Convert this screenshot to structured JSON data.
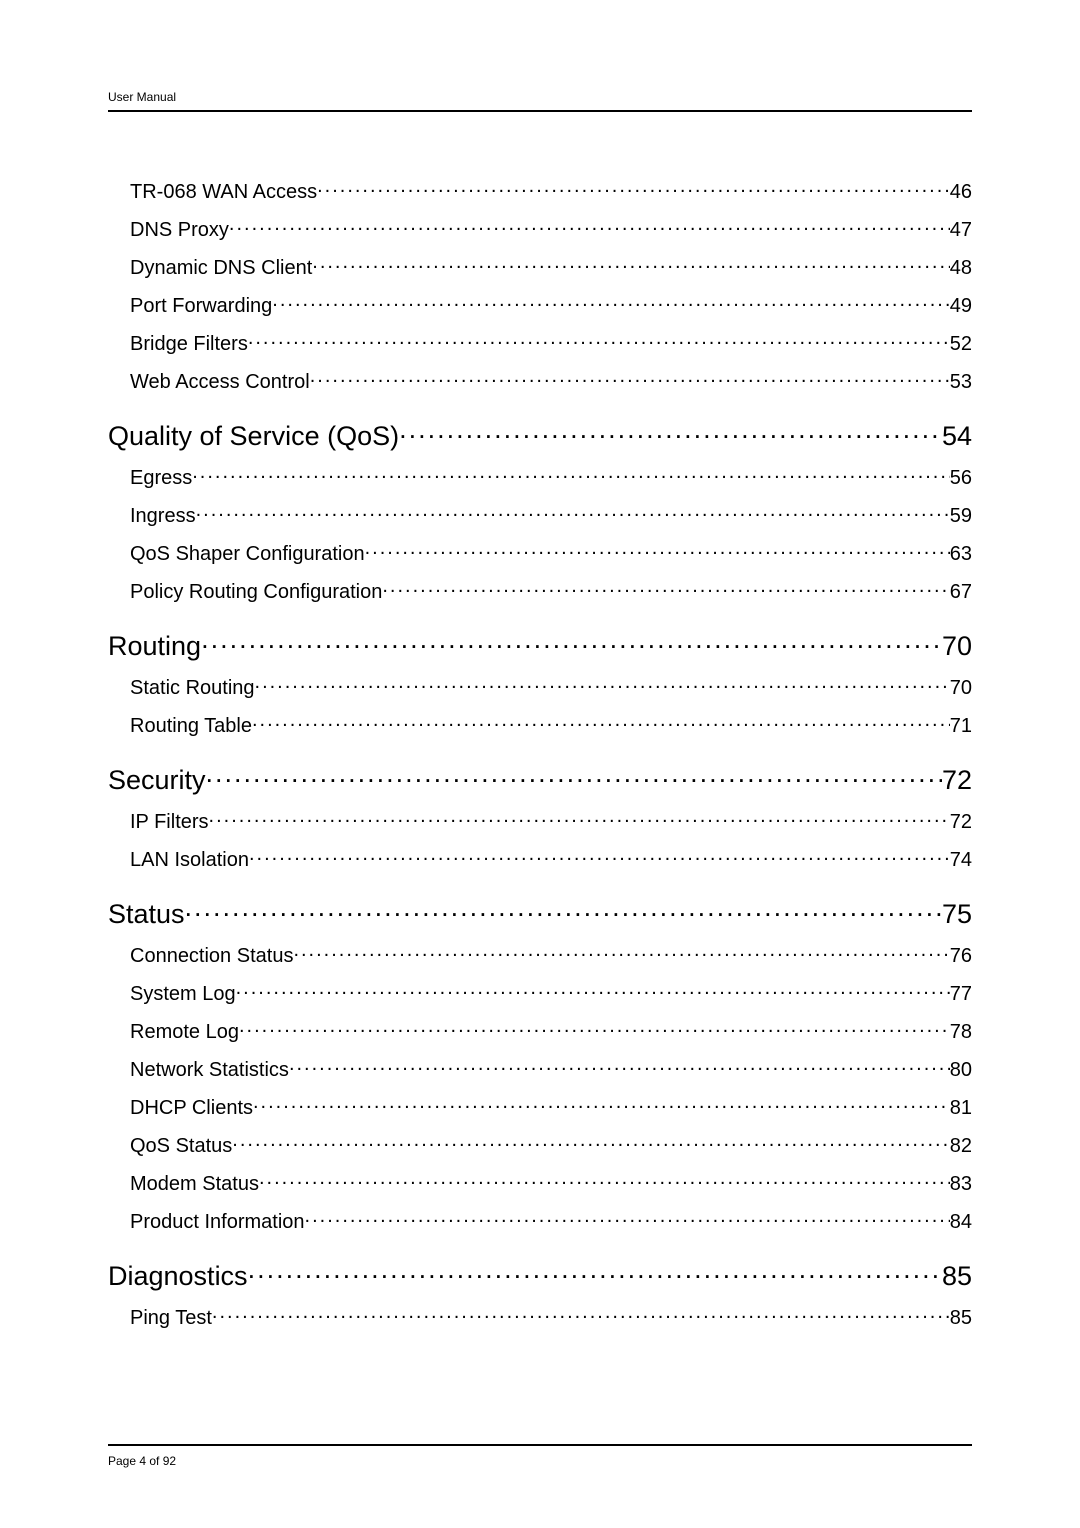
{
  "header": {
    "title": "User Manual"
  },
  "footer": {
    "page_label": "Page 4 of 92"
  },
  "toc": {
    "entries": [
      {
        "level": 2,
        "label": "TR-068 WAN Access",
        "page": "46"
      },
      {
        "level": 2,
        "label": "DNS Proxy",
        "page": "47"
      },
      {
        "level": 2,
        "label": "Dynamic DNS Client",
        "page": "48"
      },
      {
        "level": 2,
        "label": "Port Forwarding",
        "page": "49"
      },
      {
        "level": 2,
        "label": "Bridge Filters",
        "page": "52"
      },
      {
        "level": 2,
        "label": "Web Access Control",
        "page": "53"
      },
      {
        "level": 1,
        "label": "Quality of Service (QoS)",
        "page": "54"
      },
      {
        "level": 2,
        "label": "Egress",
        "page": "56"
      },
      {
        "level": 2,
        "label": "Ingress",
        "page": "59"
      },
      {
        "level": 2,
        "label": "QoS Shaper Configuration",
        "page": "63"
      },
      {
        "level": 2,
        "label": "Policy Routing Configuration",
        "page": "67"
      },
      {
        "level": 1,
        "label": "Routing",
        "page": "70"
      },
      {
        "level": 2,
        "label": "Static Routing",
        "page": "70"
      },
      {
        "level": 2,
        "label": "Routing Table",
        "page": "71"
      },
      {
        "level": 1,
        "label": "Security",
        "page": "72"
      },
      {
        "level": 2,
        "label": "IP Filters",
        "page": "72"
      },
      {
        "level": 2,
        "label": "LAN Isolation",
        "page": "74"
      },
      {
        "level": 1,
        "label": "Status",
        "page": "75"
      },
      {
        "level": 2,
        "label": "Connection Status",
        "page": "76"
      },
      {
        "level": 2,
        "label": "System Log",
        "page": "77"
      },
      {
        "level": 2,
        "label": "Remote Log",
        "page": "78"
      },
      {
        "level": 2,
        "label": "Network Statistics",
        "page": "80"
      },
      {
        "level": 2,
        "label": "DHCP Clients",
        "page": "81"
      },
      {
        "level": 2,
        "label": "QoS Status",
        "page": "82"
      },
      {
        "level": 2,
        "label": "Modem Status",
        "page": "83"
      },
      {
        "level": 2,
        "label": "Product Information",
        "page": "84"
      },
      {
        "level": 1,
        "label": "Diagnostics",
        "page": "85"
      },
      {
        "level": 2,
        "label": "Ping Test",
        "page": "85"
      }
    ]
  }
}
